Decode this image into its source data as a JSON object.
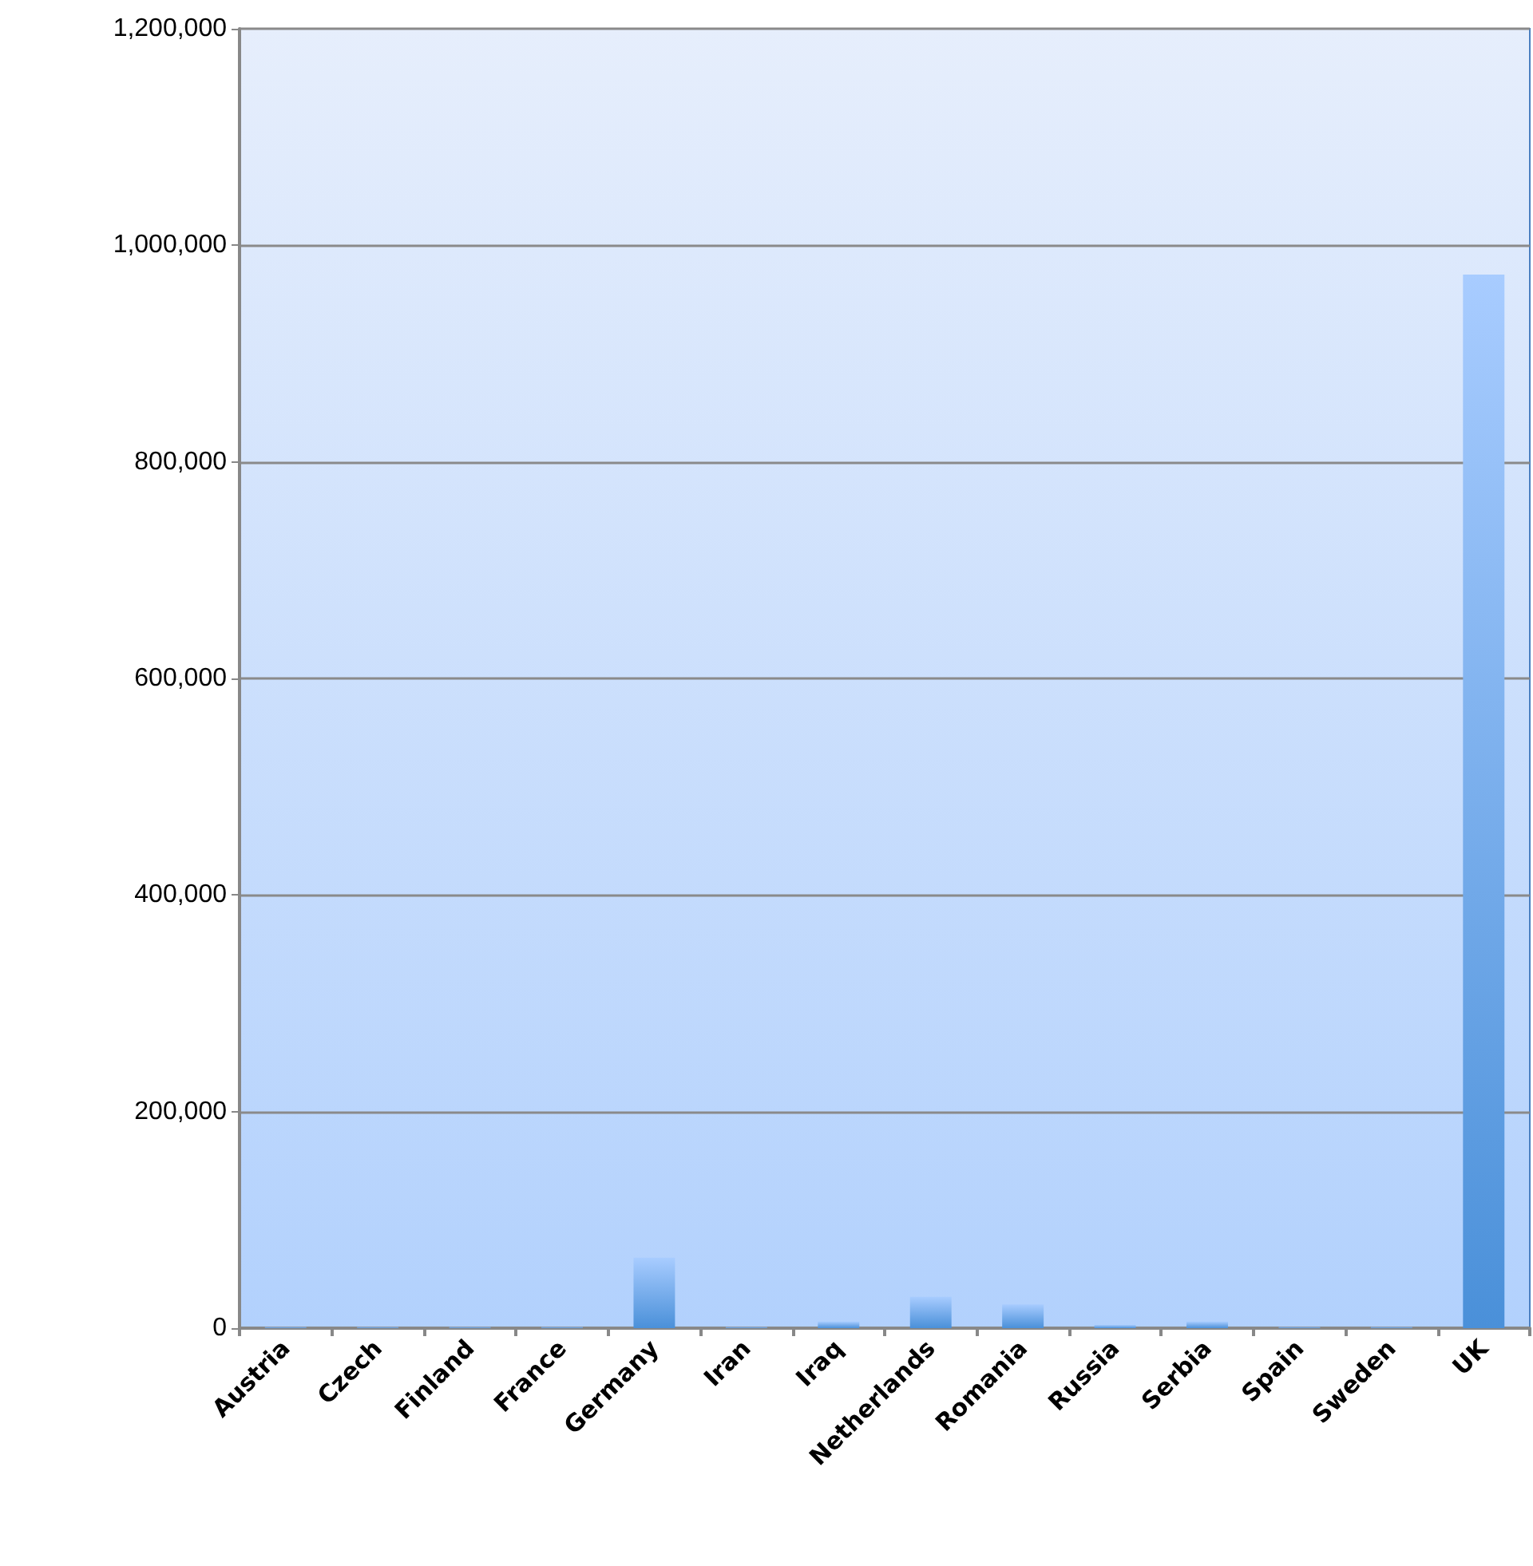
{
  "chart_data": {
    "type": "bar",
    "categories": [
      "Austria",
      "Czech",
      "Finland",
      "France",
      "Germany",
      "Iran",
      "Iraq",
      "Netherlands",
      "Romania",
      "Russia",
      "Serbia",
      "Spain",
      "Sweden",
      "UK"
    ],
    "values": [
      1000,
      1000,
      1000,
      1000,
      65000,
      1000,
      6000,
      29000,
      22000,
      3000,
      6000,
      1000,
      1000,
      973000
    ],
    "color": "#4a90d9",
    "ylim": [
      0,
      1200000
    ],
    "yticks": [
      0,
      {
        "value": 200000,
        "label": "200,000"
      },
      {
        "value": 400000,
        "label": "400,000"
      },
      {
        "value": 600000,
        "label": "600,000"
      },
      {
        "value": 800000,
        "label": "800,000"
      },
      {
        "value": 1000000,
        "label": "1,000,000"
      },
      {
        "value": 1200000,
        "label": "1,200,000"
      }
    ],
    "grid": "y"
  }
}
